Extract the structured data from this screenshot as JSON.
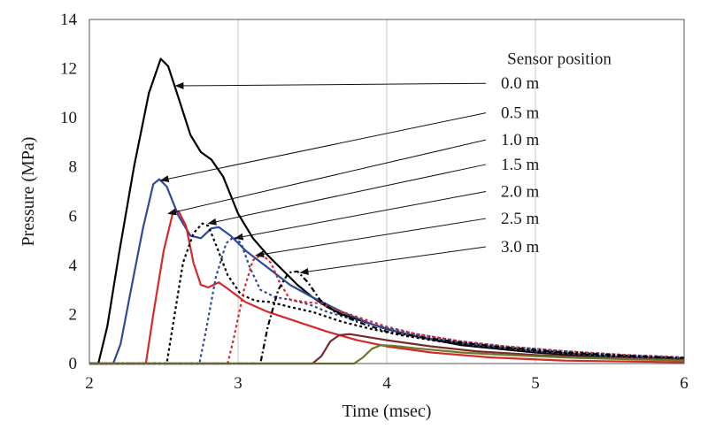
{
  "chart_data": {
    "type": "line",
    "xlabel": "Time (msec)",
    "ylabel": "Pressure (MPa)",
    "xlim": [
      2,
      6
    ],
    "ylim": [
      0,
      14
    ],
    "xticks": [
      2,
      3,
      4,
      5,
      6
    ],
    "yticks": [
      0,
      2,
      4,
      6,
      8,
      10,
      12,
      14
    ],
    "grid": "vertical",
    "legend_title": "Sensor position",
    "series": [
      {
        "name": "0.0 m",
        "color": "#000000",
        "dash": "solid",
        "label_y": 11.4,
        "arrow_to": [
          2.58,
          11.3
        ],
        "points": [
          [
            2.0,
            0
          ],
          [
            2.06,
            0
          ],
          [
            2.12,
            1.5
          ],
          [
            2.2,
            4.5
          ],
          [
            2.3,
            8.0
          ],
          [
            2.4,
            11.0
          ],
          [
            2.48,
            12.4
          ],
          [
            2.53,
            12.1
          ],
          [
            2.6,
            10.8
          ],
          [
            2.68,
            9.3
          ],
          [
            2.75,
            8.6
          ],
          [
            2.82,
            8.3
          ],
          [
            2.9,
            7.6
          ],
          [
            3.0,
            6.1
          ],
          [
            3.1,
            5.1
          ],
          [
            3.2,
            4.4
          ],
          [
            3.3,
            3.8
          ],
          [
            3.4,
            3.2
          ],
          [
            3.5,
            2.7
          ],
          [
            3.6,
            2.3
          ],
          [
            3.7,
            2.0
          ],
          [
            3.8,
            1.8
          ],
          [
            3.9,
            1.6
          ],
          [
            4.0,
            1.4
          ],
          [
            4.2,
            1.1
          ],
          [
            4.5,
            0.75
          ],
          [
            5.0,
            0.45
          ],
          [
            5.5,
            0.25
          ],
          [
            6.0,
            0.15
          ]
        ]
      },
      {
        "name": "0.5 m",
        "color": "#2e4a9a",
        "dash": "solid",
        "label_y": 10.2,
        "arrow_to": [
          2.48,
          7.45
        ],
        "points": [
          [
            2.0,
            0
          ],
          [
            2.16,
            0
          ],
          [
            2.21,
            0.8
          ],
          [
            2.28,
            3.0
          ],
          [
            2.36,
            5.5
          ],
          [
            2.43,
            7.3
          ],
          [
            2.47,
            7.5
          ],
          [
            2.52,
            7.2
          ],
          [
            2.6,
            6.0
          ],
          [
            2.68,
            5.2
          ],
          [
            2.75,
            5.1
          ],
          [
            2.82,
            5.5
          ],
          [
            2.87,
            5.55
          ],
          [
            2.95,
            5.2
          ],
          [
            3.05,
            4.6
          ],
          [
            3.2,
            3.9
          ],
          [
            3.35,
            3.2
          ],
          [
            3.5,
            2.7
          ],
          [
            3.7,
            2.1
          ],
          [
            3.9,
            1.6
          ],
          [
            4.1,
            1.25
          ],
          [
            4.3,
            1.0
          ],
          [
            4.6,
            0.75
          ],
          [
            5.0,
            0.5
          ],
          [
            5.5,
            0.3
          ],
          [
            6.0,
            0.2
          ]
        ]
      },
      {
        "name": "1.0 m",
        "color": "#d42a2a",
        "dash": "solid",
        "label_y": 9.1,
        "arrow_to": [
          2.53,
          6.1
        ],
        "points": [
          [
            2.0,
            0
          ],
          [
            2.38,
            0
          ],
          [
            2.43,
            2.0
          ],
          [
            2.5,
            4.6
          ],
          [
            2.56,
            6.1
          ],
          [
            2.6,
            6.2
          ],
          [
            2.65,
            5.6
          ],
          [
            2.7,
            4.1
          ],
          [
            2.75,
            3.2
          ],
          [
            2.8,
            3.1
          ],
          [
            2.87,
            3.3
          ],
          [
            2.94,
            3.0
          ],
          [
            3.05,
            2.5
          ],
          [
            3.2,
            2.1
          ],
          [
            3.4,
            1.7
          ],
          [
            3.6,
            1.3
          ],
          [
            3.8,
            0.95
          ],
          [
            4.0,
            0.7
          ],
          [
            4.3,
            0.45
          ],
          [
            4.7,
            0.25
          ],
          [
            5.2,
            0.12
          ],
          [
            6.0,
            0.05
          ]
        ]
      },
      {
        "name": "1.5 m",
        "color": "#000000",
        "dash": "dot",
        "label_y": 8.1,
        "arrow_to": [
          2.8,
          5.7
        ],
        "points": [
          [
            2.0,
            0
          ],
          [
            2.52,
            0
          ],
          [
            2.56,
            1.5
          ],
          [
            2.63,
            4.1
          ],
          [
            2.7,
            5.3
          ],
          [
            2.76,
            5.7
          ],
          [
            2.8,
            5.6
          ],
          [
            2.86,
            4.7
          ],
          [
            2.93,
            3.6
          ],
          [
            3.02,
            2.8
          ],
          [
            3.12,
            2.55
          ],
          [
            3.22,
            2.5
          ],
          [
            3.35,
            2.3
          ],
          [
            3.5,
            2.1
          ],
          [
            3.7,
            1.7
          ],
          [
            3.9,
            1.4
          ],
          [
            4.1,
            1.15
          ],
          [
            4.3,
            0.95
          ],
          [
            4.6,
            0.7
          ],
          [
            5.0,
            0.5
          ],
          [
            5.5,
            0.3
          ],
          [
            6.0,
            0.2
          ]
        ]
      },
      {
        "name": "2.0 m",
        "color": "#2e4a9a",
        "dash": "dot",
        "label_y": 7.0,
        "arrow_to": [
          2.98,
          5.1
        ],
        "points": [
          [
            2.0,
            0
          ],
          [
            2.74,
            0
          ],
          [
            2.78,
            1.2
          ],
          [
            2.85,
            3.5
          ],
          [
            2.92,
            4.9
          ],
          [
            2.97,
            5.15
          ],
          [
            3.02,
            4.9
          ],
          [
            3.08,
            3.9
          ],
          [
            3.15,
            3.0
          ],
          [
            3.25,
            2.7
          ],
          [
            3.35,
            2.6
          ],
          [
            3.48,
            2.4
          ],
          [
            3.6,
            2.1
          ],
          [
            3.8,
            1.75
          ],
          [
            4.0,
            1.45
          ],
          [
            4.2,
            1.2
          ],
          [
            4.5,
            0.9
          ],
          [
            4.8,
            0.7
          ],
          [
            5.2,
            0.5
          ],
          [
            5.6,
            0.35
          ],
          [
            6.0,
            0.25
          ]
        ]
      },
      {
        "name": "2.5 m",
        "color": "#d42a2a",
        "dash": "dot",
        "label_y": 5.9,
        "arrow_to": [
          3.12,
          4.4
        ],
        "points": [
          [
            2.0,
            0
          ],
          [
            2.93,
            0
          ],
          [
            2.97,
            1.0
          ],
          [
            3.04,
            3.0
          ],
          [
            3.1,
            4.2
          ],
          [
            3.16,
            4.45
          ],
          [
            3.22,
            4.1
          ],
          [
            3.28,
            3.3
          ],
          [
            3.35,
            2.6
          ],
          [
            3.45,
            2.5
          ],
          [
            3.55,
            2.45
          ],
          [
            3.7,
            2.1
          ],
          [
            3.85,
            1.8
          ],
          [
            4.0,
            1.5
          ],
          [
            4.2,
            1.2
          ],
          [
            4.5,
            0.9
          ],
          [
            4.8,
            0.7
          ],
          [
            5.2,
            0.5
          ],
          [
            5.6,
            0.35
          ],
          [
            6.0,
            0.25
          ]
        ]
      },
      {
        "name": "3.0 m",
        "color": "#000000",
        "dash": "dashdot",
        "label_y": 4.75,
        "arrow_to": [
          3.42,
          3.7
        ],
        "points": [
          [
            2.0,
            0
          ],
          [
            3.15,
            0
          ],
          [
            3.2,
            1.5
          ],
          [
            3.27,
            3.0
          ],
          [
            3.34,
            3.7
          ],
          [
            3.4,
            3.75
          ],
          [
            3.47,
            3.3
          ],
          [
            3.55,
            2.6
          ],
          [
            3.65,
            2.1
          ],
          [
            3.8,
            1.7
          ],
          [
            4.0,
            1.3
          ],
          [
            4.2,
            1.1
          ],
          [
            4.5,
            0.85
          ],
          [
            4.8,
            0.65
          ],
          [
            5.2,
            0.45
          ],
          [
            5.6,
            0.32
          ],
          [
            6.0,
            0.22
          ]
        ]
      },
      {
        "color": "#7a2a2a",
        "dash": "solid",
        "points": [
          [
            2.0,
            0
          ],
          [
            3.5,
            0
          ],
          [
            3.56,
            0.3
          ],
          [
            3.62,
            0.9
          ],
          [
            3.68,
            1.15
          ],
          [
            3.75,
            1.2
          ],
          [
            3.85,
            1.1
          ],
          [
            4.0,
            0.95
          ],
          [
            4.3,
            0.7
          ],
          [
            4.6,
            0.5
          ],
          [
            5.0,
            0.35
          ],
          [
            5.5,
            0.22
          ],
          [
            6.0,
            0.15
          ]
        ]
      },
      {
        "color": "#6b7a2a",
        "dash": "solid",
        "points": [
          [
            2.0,
            0
          ],
          [
            3.78,
            0
          ],
          [
            3.84,
            0.25
          ],
          [
            3.9,
            0.6
          ],
          [
            3.96,
            0.75
          ],
          [
            4.05,
            0.72
          ],
          [
            4.2,
            0.62
          ],
          [
            4.5,
            0.45
          ],
          [
            4.8,
            0.35
          ],
          [
            5.2,
            0.25
          ],
          [
            5.6,
            0.18
          ],
          [
            6.0,
            0.12
          ]
        ]
      }
    ]
  }
}
